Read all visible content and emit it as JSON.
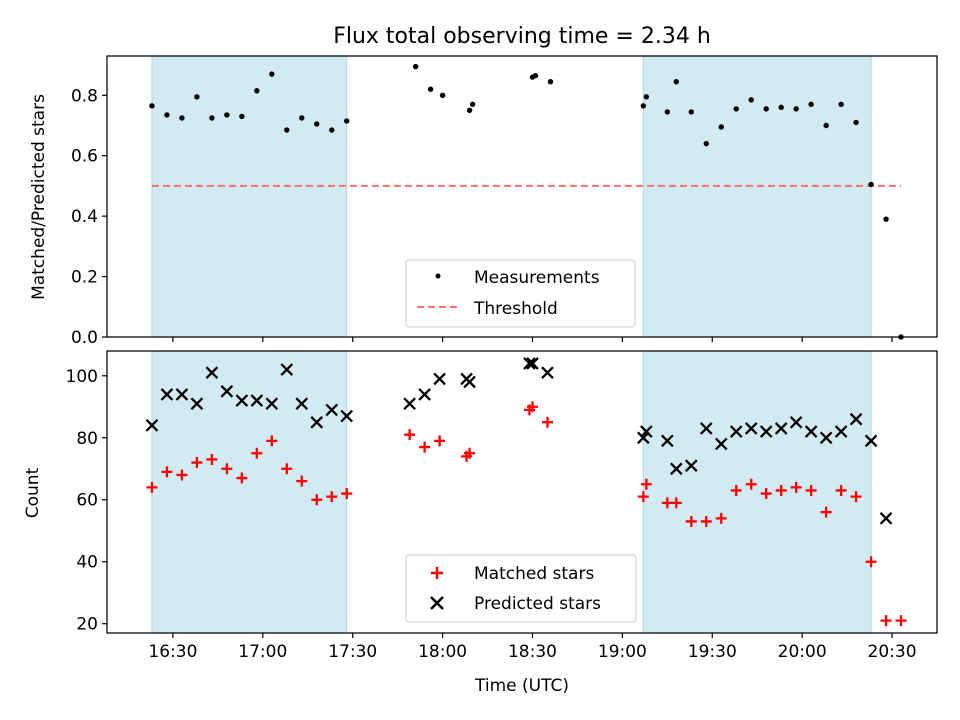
{
  "chart_data": {
    "title": "Flux total observing time = 2.34 h",
    "xlabel": "Time (UTC)",
    "x_tick_labels": [
      "16:30",
      "17:00",
      "17:30",
      "18:00",
      "18:30",
      "19:00",
      "19:30",
      "20:00",
      "20:30"
    ],
    "x_tick_minutes": [
      990,
      1020,
      1050,
      1080,
      1110,
      1140,
      1170,
      1200,
      1230
    ],
    "xlim_minutes": [
      968,
      1245
    ],
    "shaded_intervals": [
      {
        "start": "16:23",
        "end": "17:28",
        "start_min": 983,
        "end_min": 1048,
        "color": "#add8e6"
      },
      {
        "start": "19:07",
        "end": "20:23",
        "start_min": 1147,
        "end_min": 1223,
        "color": "#add8e6"
      }
    ],
    "panels": [
      {
        "type": "scatter",
        "ylabel": "Matched/Predicted stars",
        "ylim": [
          0,
          0.93
        ],
        "y_ticks": [
          0.0,
          0.2,
          0.4,
          0.6,
          0.8
        ],
        "y_tick_labels": [
          "0.0",
          "0.2",
          "0.4",
          "0.6",
          "0.8"
        ],
        "legend_position": "lower-center",
        "series": [
          {
            "name": "Measurements",
            "marker": "dot",
            "color": "#000000",
            "x": [
              983,
              988,
              993,
              998,
              1003,
              1008,
              1013,
              1018,
              1023,
              1028,
              1033,
              1038,
              1043,
              1048,
              1071,
              1076,
              1080,
              1089,
              1090,
              1110,
              1111,
              1116,
              1147,
              1148,
              1155,
              1158,
              1163,
              1168,
              1173,
              1178,
              1183,
              1188,
              1193,
              1198,
              1203,
              1208,
              1213,
              1218,
              1223,
              1228,
              1233
            ],
            "y": [
              0.765,
              0.735,
              0.725,
              0.795,
              0.725,
              0.735,
              0.73,
              0.815,
              0.87,
              0.685,
              0.725,
              0.705,
              0.685,
              0.715,
              0.895,
              0.82,
              0.8,
              0.75,
              0.77,
              0.86,
              0.865,
              0.845,
              0.765,
              0.795,
              0.745,
              0.845,
              0.745,
              0.64,
              0.695,
              0.755,
              0.785,
              0.755,
              0.76,
              0.755,
              0.77,
              0.7,
              0.77,
              0.71,
              0.505,
              0.39,
              0.0
            ]
          },
          {
            "name": "Threshold",
            "marker": "dashed-line",
            "color": "#ff7070",
            "x": [
              983,
              1233
            ],
            "y": [
              0.5,
              0.5
            ]
          }
        ]
      },
      {
        "type": "scatter",
        "ylabel": "Count",
        "ylim": [
          17,
          108
        ],
        "y_ticks": [
          20,
          40,
          60,
          80,
          100
        ],
        "y_tick_labels": [
          "20",
          "40",
          "60",
          "80",
          "100"
        ],
        "legend_position": "lower-center",
        "series": [
          {
            "name": "Matched stars",
            "marker": "plus",
            "color": "#ff0000",
            "x": [
              983,
              988,
              993,
              998,
              1003,
              1008,
              1013,
              1018,
              1023,
              1028,
              1033,
              1038,
              1043,
              1048,
              1069,
              1074,
              1079,
              1088,
              1089,
              1109,
              1110,
              1115,
              1147,
              1148,
              1155,
              1158,
              1163,
              1168,
              1173,
              1178,
              1183,
              1188,
              1193,
              1198,
              1203,
              1208,
              1213,
              1218,
              1223,
              1228,
              1233
            ],
            "y": [
              64,
              69,
              68,
              72,
              73,
              70,
              67,
              75,
              79,
              70,
              66,
              60,
              61,
              62,
              81,
              77,
              79,
              74,
              75,
              89,
              90,
              85,
              61,
              65,
              59,
              59,
              53,
              53,
              54,
              63,
              65,
              62,
              63,
              64,
              63,
              56,
              63,
              61,
              40,
              21,
              21
            ]
          },
          {
            "name": "Predicted stars",
            "marker": "x",
            "color": "#000000",
            "x": [
              983,
              988,
              993,
              998,
              1003,
              1008,
              1013,
              1018,
              1023,
              1028,
              1033,
              1038,
              1043,
              1048,
              1069,
              1074,
              1079,
              1088,
              1089,
              1109,
              1110,
              1115,
              1147,
              1148,
              1155,
              1158,
              1163,
              1168,
              1173,
              1178,
              1183,
              1188,
              1193,
              1198,
              1203,
              1208,
              1213,
              1218,
              1223,
              1228
            ],
            "y": [
              84,
              94,
              94,
              91,
              101,
              95,
              92,
              92,
              91,
              102,
              91,
              85,
              89,
              87,
              91,
              94,
              99,
              99,
              98,
              104,
              104,
              101,
              80,
              82,
              79,
              70,
              71,
              83,
              78,
              82,
              83,
              82,
              83,
              85,
              82,
              80,
              82,
              86,
              79,
              54
            ]
          }
        ]
      }
    ]
  }
}
